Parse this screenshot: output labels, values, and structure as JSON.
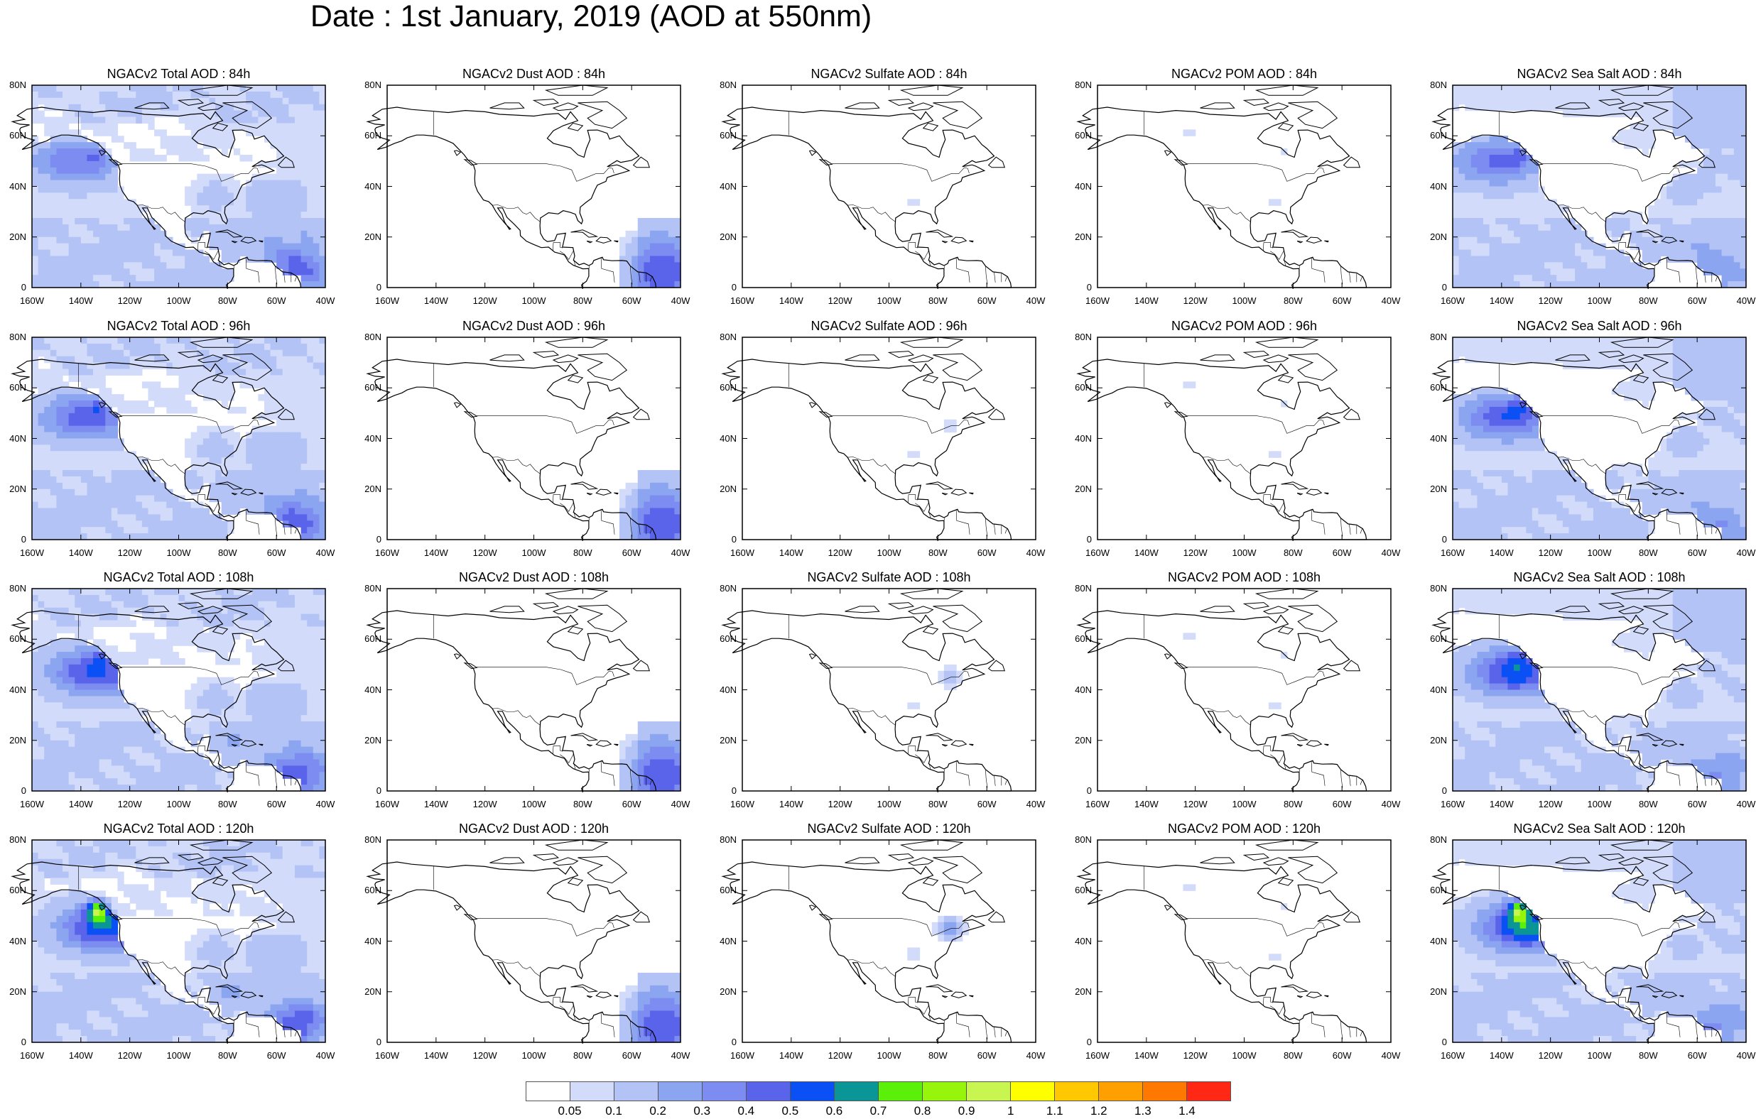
{
  "title": "Date : 1st January, 2019 (AOD at 550nm)",
  "panels": [
    {
      "title": "NGACv2 Total AOD : 84h",
      "field": "total",
      "step": 0
    },
    {
      "title": "NGACv2 Dust AOD : 84h",
      "field": "dust",
      "step": 0
    },
    {
      "title": "NGACv2 Sulfate AOD : 84h",
      "field": "sulfate",
      "step": 0
    },
    {
      "title": "NGACv2 POM AOD : 84h",
      "field": "pom",
      "step": 0
    },
    {
      "title": "NGACv2 Sea Salt AOD : 84h",
      "field": "seasalt",
      "step": 0
    },
    {
      "title": "NGACv2 Total AOD : 96h",
      "field": "total",
      "step": 1
    },
    {
      "title": "NGACv2 Dust AOD : 96h",
      "field": "dust",
      "step": 1
    },
    {
      "title": "NGACv2 Sulfate AOD : 96h",
      "field": "sulfate",
      "step": 1
    },
    {
      "title": "NGACv2 POM AOD : 96h",
      "field": "pom",
      "step": 1
    },
    {
      "title": "NGACv2 Sea Salt AOD : 96h",
      "field": "seasalt",
      "step": 1
    },
    {
      "title": "NGACv2 Total AOD : 108h",
      "field": "total",
      "step": 2
    },
    {
      "title": "NGACv2 Dust AOD : 108h",
      "field": "dust",
      "step": 2
    },
    {
      "title": "NGACv2 Sulfate AOD : 108h",
      "field": "sulfate",
      "step": 2
    },
    {
      "title": "NGACv2 POM AOD : 108h",
      "field": "pom",
      "step": 2
    },
    {
      "title": "NGACv2 Sea Salt AOD : 108h",
      "field": "seasalt",
      "step": 2
    },
    {
      "title": "NGACv2 Total AOD : 120h",
      "field": "total",
      "step": 3
    },
    {
      "title": "NGACv2 Dust AOD : 120h",
      "field": "dust",
      "step": 3
    },
    {
      "title": "NGACv2 Sulfate AOD : 120h",
      "field": "sulfate",
      "step": 3
    },
    {
      "title": "NGACv2 POM AOD : 120h",
      "field": "pom",
      "step": 3
    },
    {
      "title": "NGACv2 Sea Salt  AOD : 120h",
      "field": "seasalt",
      "step": 3
    }
  ],
  "lat_ticks": [
    "80N",
    "60N",
    "40N",
    "20N",
    "0"
  ],
  "lon_ticks": [
    "160W",
    "140W",
    "120W",
    "100W",
    "80W",
    "60W",
    "40W"
  ],
  "colorbar": {
    "colors": [
      "#ffffff",
      "#d2dcfa",
      "#b4c3f5",
      "#8ca5f0",
      "#7d8cf0",
      "#5a64eb",
      "#0a50f5",
      "#0a9696",
      "#5af00a",
      "#96f50a",
      "#c8f550",
      "#ffff00",
      "#ffc800",
      "#ffa000",
      "#ff7800",
      "#ff2814"
    ],
    "labels": [
      "0.05",
      "0.1",
      "0.2",
      "0.3",
      "0.4",
      "0.5",
      "0.6",
      "0.7",
      "0.8",
      "0.9",
      "1",
      "1.1",
      "1.2",
      "1.3",
      "1.4"
    ]
  }
}
